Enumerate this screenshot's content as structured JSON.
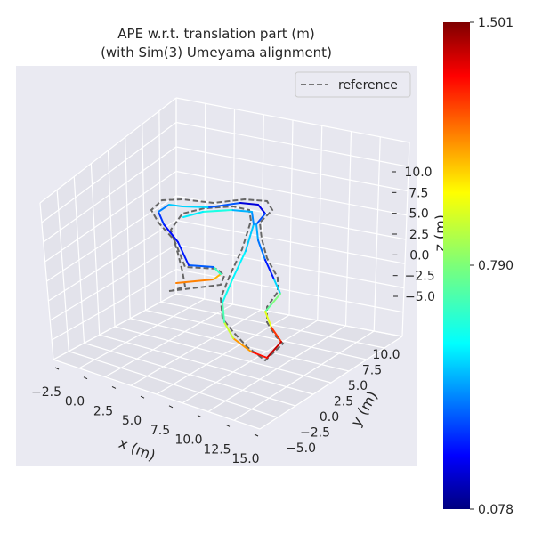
{
  "chart_data": {
    "type": "line3d",
    "title": "APE w.r.t. translation part (m)",
    "subtitle": "(with Sim(3) Umeyama alignment)",
    "xlabel": "x (m)",
    "ylabel": "y (m)",
    "zlabel": "z (m)",
    "x_ticks": [
      "−2.5",
      "0.0",
      "2.5",
      "5.0",
      "7.5",
      "10.0",
      "12.5",
      "15.0"
    ],
    "y_ticks": [
      "−5.0",
      "−2.5",
      "0.0",
      "2.5",
      "5.0",
      "7.5",
      "10.0"
    ],
    "z_ticks": [
      "−5.0",
      "−2.5",
      "0.0",
      "2.5",
      "5.0",
      "7.5",
      "10.0"
    ],
    "legend": {
      "entries": [
        "reference"
      ],
      "placement": "top-right"
    },
    "colorbar": {
      "colormap": "jet",
      "min": 0.078,
      "max": 1.501,
      "ticks": [
        "1.501",
        "0.790",
        "0.078"
      ]
    },
    "series": [
      {
        "name": "reference",
        "style": "dashed",
        "color": "#666666"
      }
    ],
    "error_range": [
      0.078,
      1.501
    ]
  }
}
